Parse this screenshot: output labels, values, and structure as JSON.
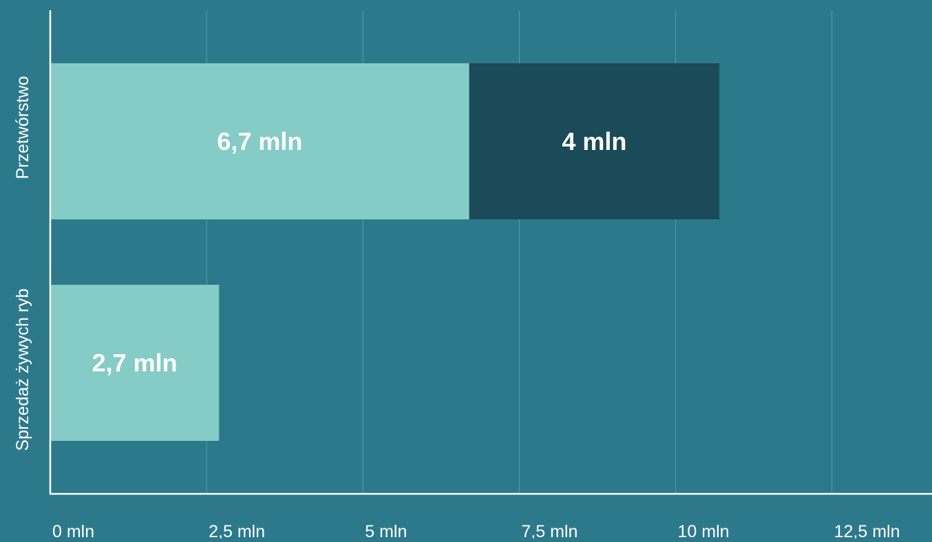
{
  "chart_data": {
    "type": "bar",
    "orientation": "horizontal",
    "stacked": true,
    "categories": [
      "Przetwórstwo",
      "Sprzedaż żywych ryb"
    ],
    "series": [
      {
        "values": [
          6.7,
          2.7
        ],
        "value_labels": [
          "6,7 mln",
          "2,7 mln"
        ],
        "color": "#85cbc6"
      },
      {
        "values": [
          4,
          null
        ],
        "value_labels": [
          "4 mln",
          ""
        ],
        "color": "#1b4a58"
      }
    ],
    "xlim": [
      0,
      14.1
    ],
    "x_ticks": [
      0,
      2.5,
      5,
      7.5,
      10,
      12.5
    ],
    "x_tick_labels": [
      "0 mln",
      "2,5 mln",
      "5 mln",
      "7,5 mln",
      "10 mln",
      "12,5 mln"
    ],
    "grid": true,
    "legend": "none",
    "colors": {
      "background": "#2d798c",
      "grid": "#4fa3ab",
      "axis": "#ffffff",
      "text": "#ffffff"
    }
  }
}
